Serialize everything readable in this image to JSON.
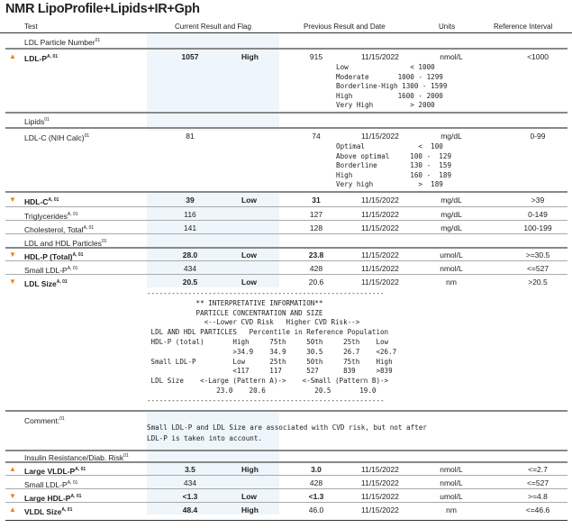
{
  "title": "NMR LipoProfile+Lipids+IR+Gph",
  "headers": {
    "test": "Test",
    "current": "Current Result and Flag",
    "previous": "Previous Result and Date",
    "units": "Units",
    "reference": "Reference Interval"
  },
  "sections": {
    "ldl_particle_number": "LDL Particle Number",
    "lipids": "Lipids",
    "ldl_hdl_particles": "LDL and HDL Particles",
    "comment": "Comment:",
    "insulin": "Insulin Resistance/Diab. Risk"
  },
  "superscripts": {
    "s01": "01",
    "a01": "A, 01"
  },
  "flag_colors": {
    "arrow": "#e8821e"
  },
  "rows": [
    {
      "test": "LDL-P",
      "current": "1057",
      "flag": "High",
      "previous": "915",
      "date": "11/15/2022",
      "units": "nmol/L",
      "ref": "<1000",
      "dir": "up"
    },
    {
      "test": "LDL-C (NIH Calc)",
      "current": "81",
      "flag": "",
      "previous": "74",
      "date": "11/15/2022",
      "units": "mg/dL",
      "ref": "0-99",
      "dir": ""
    },
    {
      "test": "HDL-C",
      "current": "39",
      "flag": "Low",
      "previous": "31",
      "date": "11/15/2022",
      "units": "mg/dL",
      "ref": ">39",
      "dir": "down"
    },
    {
      "test": "Triglycerides",
      "current": "116",
      "flag": "",
      "previous": "127",
      "date": "11/15/2022",
      "units": "mg/dL",
      "ref": "0-149",
      "dir": ""
    },
    {
      "test": "Cholesterol, Total",
      "current": "141",
      "flag": "",
      "previous": "128",
      "date": "11/15/2022",
      "units": "mg/dL",
      "ref": "100-199",
      "dir": ""
    },
    {
      "test": "HDL-P (Total)",
      "current": "28.0",
      "flag": "Low",
      "previous": "23.8",
      "date": "11/15/2022",
      "units": "umol/L",
      "ref": ">=30.5",
      "dir": "down"
    },
    {
      "test": "Small LDL-P",
      "current": "434",
      "flag": "",
      "previous": "428",
      "date": "11/15/2022",
      "units": "nmol/L",
      "ref": "<=527",
      "dir": ""
    },
    {
      "test": "LDL Size",
      "current": "20.5",
      "flag": "Low",
      "previous": "20.6",
      "date": "11/15/2022",
      "units": "nm",
      "ref": ">20.5",
      "dir": "down"
    },
    {
      "test": "Large VLDL-P",
      "current": "3.5",
      "flag": "High",
      "previous": "3.0",
      "date": "11/15/2022",
      "units": "nmol/L",
      "ref": "<=2.7",
      "dir": "up"
    },
    {
      "test": "Small LDL-P",
      "current": "434",
      "flag": "",
      "previous": "428",
      "date": "11/15/2022",
      "units": "nmol/L",
      "ref": "<=527",
      "dir": ""
    },
    {
      "test": "Large HDL-P",
      "current": "<1.3",
      "flag": "Low",
      "previous": "<1.3",
      "date": "11/15/2022",
      "units": "umol/L",
      "ref": ">=4.8",
      "dir": "down"
    },
    {
      "test": "VLDL Size",
      "current": "48.4",
      "flag": "High",
      "previous": "46.0",
      "date": "11/15/2022",
      "units": "nm",
      "ref": "<=46.6",
      "dir": "up"
    }
  ],
  "ldlp_ranges": "Low               < 1000\nModerate       1000 - 1299\nBorderline-High 1300 - 1599\nHigh           1600 - 2000\nVery High         > 2000",
  "ldlc_ranges": "Optimal             <  100\nAbove optimal     100 -  129\nBorderline        130 -  159\nHigh              160 -  189\nVery high           >  189",
  "interpretive": "----------------------------------------------------------\n            ** INTERPRETATIVE INFORMATION**\n            PARTICLE CONCENTRATION AND SIZE\n              <--Lower CVD Risk   Higher CVD Risk-->\n LDL AND HDL PARTICLES   Percentile in Reference Population\n HDL-P (total)       High     75th     50th     25th    Low\n                     >34.9    34.9     30.5     26.7    <26.7\n Small LDL-P         Low      25th     50th     75th    High\n                     <117     117      527      839     >839\n LDL Size    <-Large (Pattern A)->    <-Small (Pattern B)->\n                 23.0    20.6            20.5       19.0\n----------------------------------------------------------",
  "comment_text": "Small LDL-P and LDL Size are associated with CVD risk, but not after\nLDL-P is taken into account."
}
